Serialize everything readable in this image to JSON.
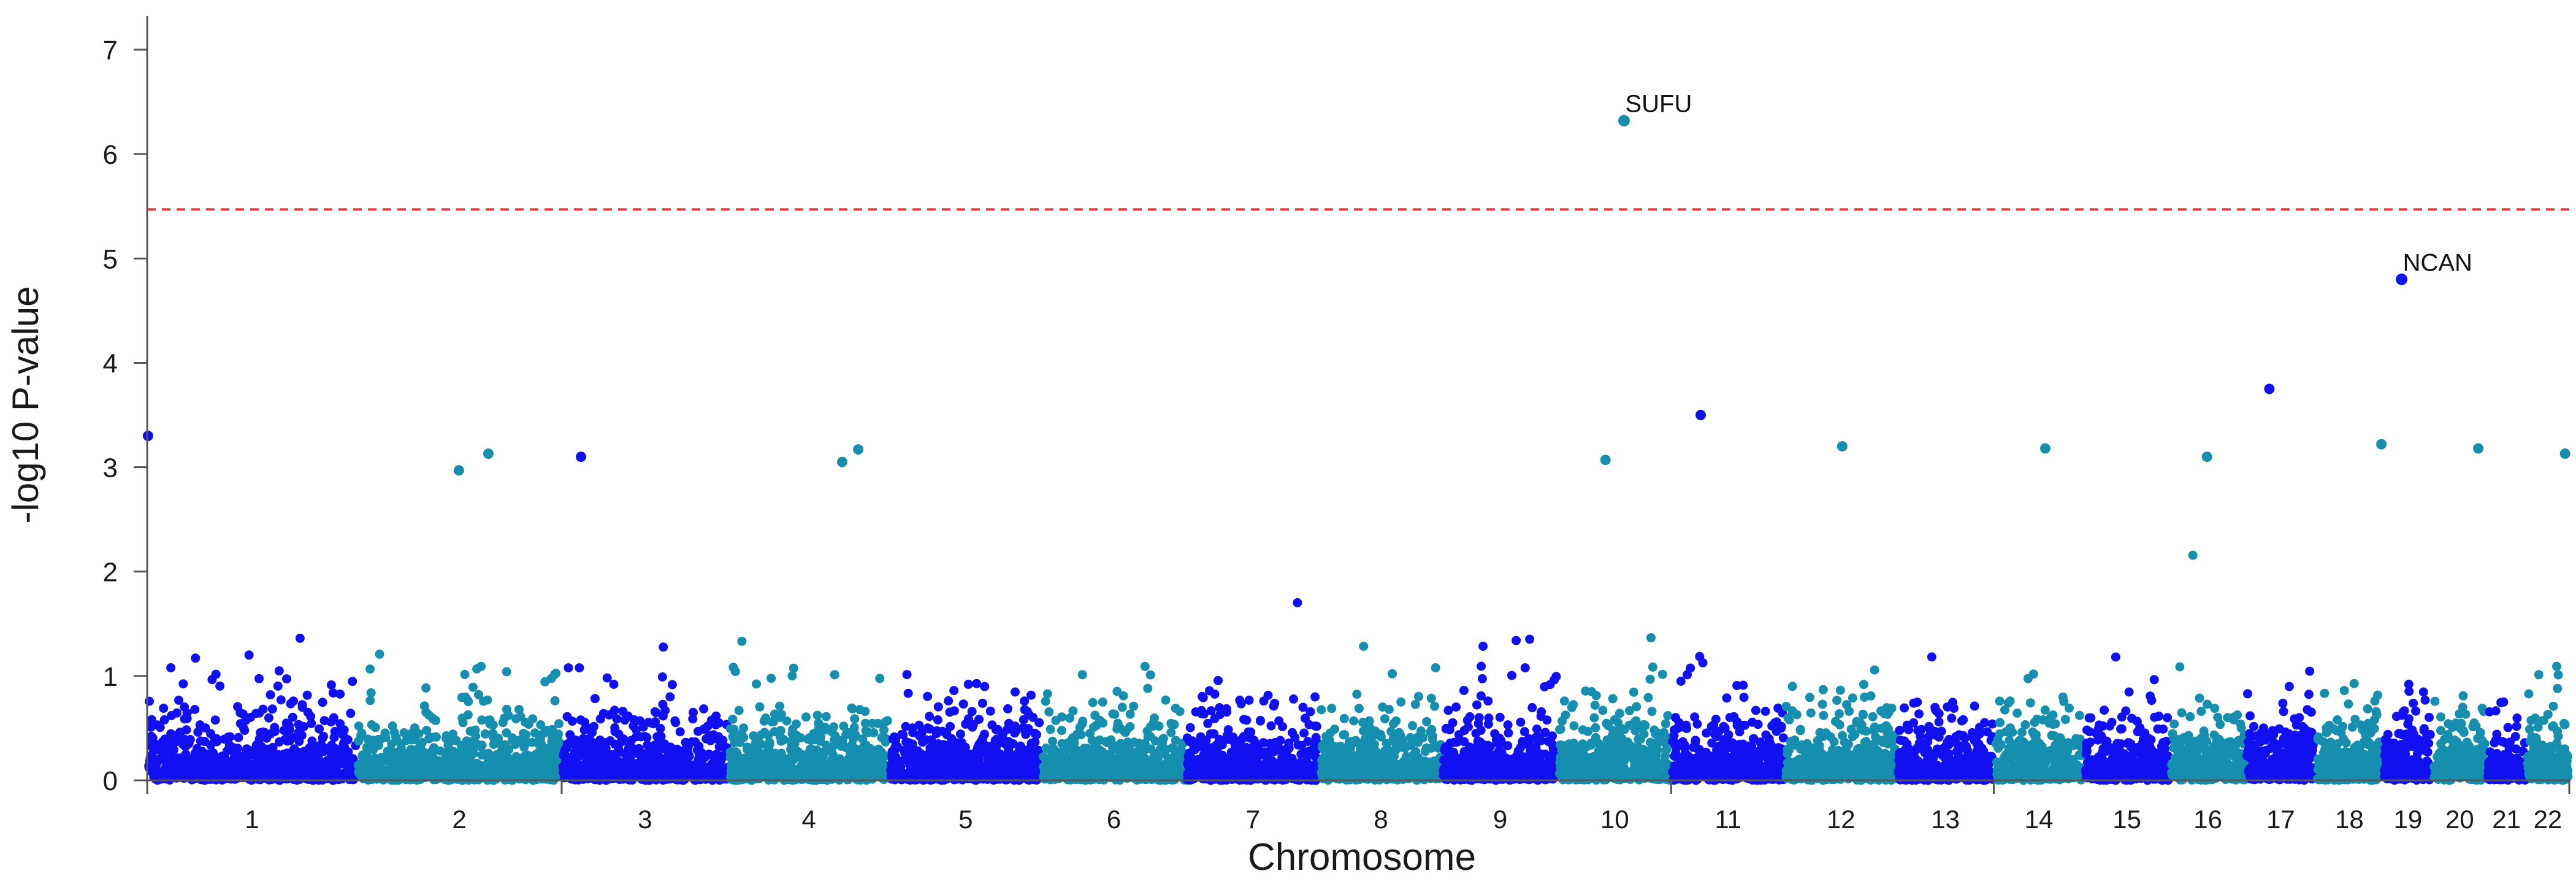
{
  "colors": {
    "odd_chromosome": "#1010f0",
    "even_chromosome": "#168fae",
    "threshold": "#e23a3a",
    "axis": "#555555"
  },
  "chart_data": {
    "type": "scatter",
    "title": "",
    "xlabel": "Chromosome",
    "ylabel": "-log10 P-value",
    "ylim": [
      0,
      7.3
    ],
    "yticks": [
      0,
      1,
      2,
      3,
      4,
      5,
      6,
      7
    ],
    "threshold": 5.47,
    "chromosomes": [
      {
        "label": "1",
        "start": 0,
        "end": 249
      },
      {
        "label": "2",
        "start": 249,
        "end": 492
      },
      {
        "label": "3",
        "start": 492,
        "end": 690
      },
      {
        "label": "4",
        "start": 690,
        "end": 881
      },
      {
        "label": "5",
        "start": 881,
        "end": 1062
      },
      {
        "label": "6",
        "start": 1062,
        "end": 1233
      },
      {
        "label": "7",
        "start": 1233,
        "end": 1392
      },
      {
        "label": "8",
        "start": 1392,
        "end": 1537
      },
      {
        "label": "9",
        "start": 1537,
        "end": 1675
      },
      {
        "label": "10",
        "start": 1675,
        "end": 1809
      },
      {
        "label": "11",
        "start": 1809,
        "end": 1944
      },
      {
        "label": "12",
        "start": 1944,
        "end": 2077
      },
      {
        "label": "13",
        "start": 2077,
        "end": 2192
      },
      {
        "label": "14",
        "start": 2192,
        "end": 2299
      },
      {
        "label": "15",
        "start": 2299,
        "end": 2401
      },
      {
        "label": "16",
        "start": 2401,
        "end": 2491
      },
      {
        "label": "17",
        "start": 2491,
        "end": 2574
      },
      {
        "label": "18",
        "start": 2574,
        "end": 2654
      },
      {
        "label": "19",
        "start": 2654,
        "end": 2713
      },
      {
        "label": "20",
        "start": 2713,
        "end": 2777
      },
      {
        "label": "21",
        "start": 2777,
        "end": 2824
      },
      {
        "label": "22",
        "start": 2824,
        "end": 2875
      }
    ],
    "highlighted": [
      {
        "label": "SUFU",
        "chromosome": "10",
        "position": 1753,
        "value": 6.32
      },
      {
        "label": "NCAN",
        "chromosome": "19",
        "position": 2676,
        "value": 4.8
      }
    ],
    "notable_points": [
      {
        "chromosome": "1",
        "position": 1,
        "value": 3.3
      },
      {
        "chromosome": "2",
        "position": 370,
        "value": 2.97
      },
      {
        "chromosome": "2",
        "position": 405,
        "value": 3.13
      },
      {
        "chromosome": "3",
        "position": 515,
        "value": 3.1
      },
      {
        "chromosome": "4",
        "position": 825,
        "value": 3.05
      },
      {
        "chromosome": "4",
        "position": 844,
        "value": 3.17
      },
      {
        "chromosome": "10",
        "position": 1731,
        "value": 3.07
      },
      {
        "chromosome": "11",
        "position": 1844,
        "value": 3.5
      },
      {
        "chromosome": "12",
        "position": 2012,
        "value": 3.2
      },
      {
        "chromosome": "14",
        "position": 2253,
        "value": 3.18
      },
      {
        "chromosome": "16",
        "position": 2445,
        "value": 3.1
      },
      {
        "chromosome": "17",
        "position": 2519,
        "value": 3.75
      },
      {
        "chromosome": "18",
        "position": 2652,
        "value": 3.22
      },
      {
        "chromosome": "20",
        "position": 2767,
        "value": 3.18
      },
      {
        "chromosome": "22",
        "position": 2870,
        "value": 3.13
      }
    ]
  }
}
